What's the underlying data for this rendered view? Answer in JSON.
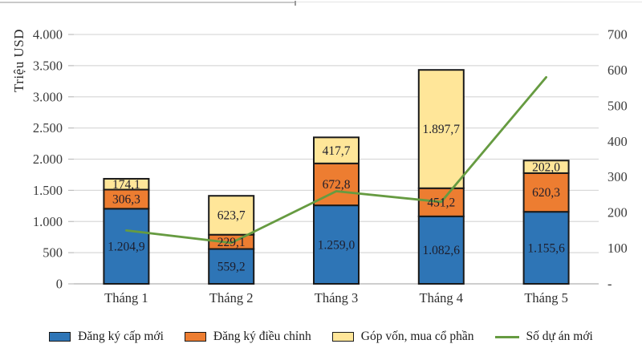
{
  "chart_data": {
    "type": "bar",
    "subtype": "stacked-bar-with-line",
    "categories": [
      "Tháng 1",
      "Tháng 2",
      "Tháng 3",
      "Tháng 4",
      "Tháng 5"
    ],
    "series": [
      {
        "name": "Đăng ký cấp mới",
        "kind": "bar",
        "color": "#2E75B6",
        "values": [
          1204.9,
          559.2,
          1259.0,
          1082.6,
          1155.6
        ],
        "labels": [
          "1.204,9",
          "559,2",
          "1.259,0",
          "1.082,6",
          "1.155,6"
        ]
      },
      {
        "name": "Đăng ký điều chỉnh",
        "kind": "bar",
        "color": "#ED7D31",
        "values": [
          306.3,
          229.1,
          672.8,
          451.2,
          620.3
        ],
        "labels": [
          "306,3",
          "229,1",
          "672,8",
          "451,2",
          "620,3"
        ]
      },
      {
        "name": "Góp vốn, mua cổ phần",
        "kind": "bar",
        "color": "#FFE699",
        "values": [
          174.1,
          623.7,
          417.7,
          1897.7,
          202.0
        ],
        "labels": [
          "174,1",
          "623,7",
          "417,7",
          "1.897,7",
          "202,0"
        ]
      },
      {
        "name": "Số dự án mới",
        "kind": "line",
        "axis": "right",
        "color": "#669B41",
        "values": [
          150,
          115,
          260,
          230,
          580
        ]
      }
    ],
    "left_axis": {
      "title": "Triệu USD",
      "min": 0,
      "max": 4000,
      "step": 500,
      "tick_labels": [
        "0",
        "500",
        "1.000",
        "1.500",
        "2.000",
        "2.500",
        "3.000",
        "3.500",
        "4.000"
      ]
    },
    "right_axis": {
      "min": 0,
      "max": 700,
      "step": 100,
      "tick_labels": [
        "-",
        "100",
        "200",
        "300",
        "400",
        "500",
        "600",
        "700"
      ]
    },
    "grid": true,
    "legend_position": "bottom",
    "colors": {
      "gridline": "#d9d9d9",
      "axis_line": "#bdbdbd",
      "bar_border": "#1a1a1a",
      "tick_text": "#3a3a3a",
      "bar_label_text": "#1d1d2b"
    }
  }
}
